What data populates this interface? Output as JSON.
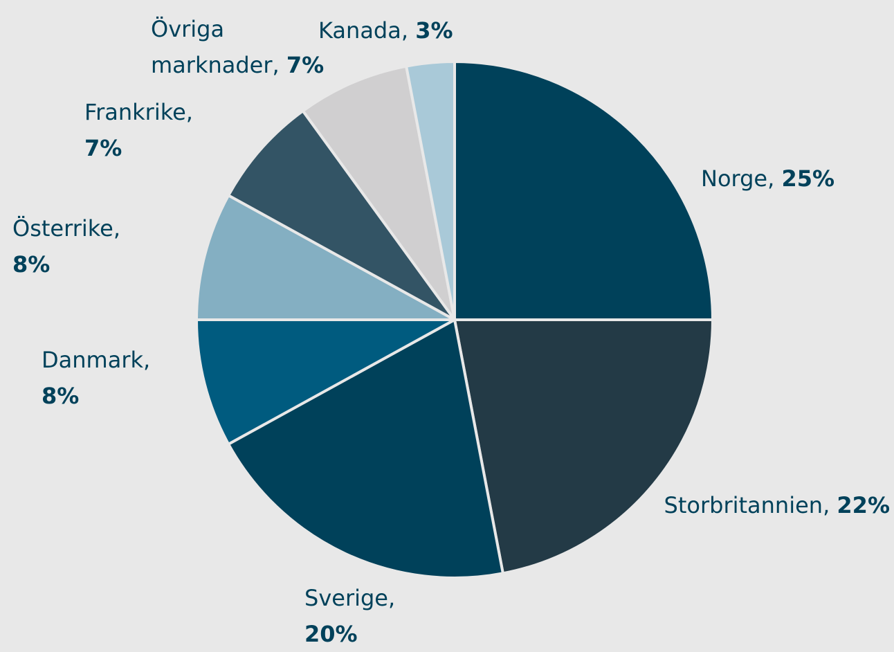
{
  "chart_data": {
    "type": "pie",
    "categories": [
      "Norge,",
      "Storbritannien,",
      "Sverige,",
      "Danmark,",
      "Österrike,",
      "Frankrike,",
      "Övriga marknader,",
      "Kanada,"
    ],
    "values": [
      25,
      22,
      20,
      8,
      8,
      7,
      7,
      3
    ],
    "value_labels": [
      "25%",
      "22%",
      "20%",
      "8%",
      "8%",
      "7%",
      "7%",
      "3%"
    ],
    "colors": [
      "#00415a",
      "#233a46",
      "#00415a",
      "#005b7f",
      "#84afc2",
      "#335465",
      "#d0cfd0",
      "#a9c9d8"
    ]
  }
}
